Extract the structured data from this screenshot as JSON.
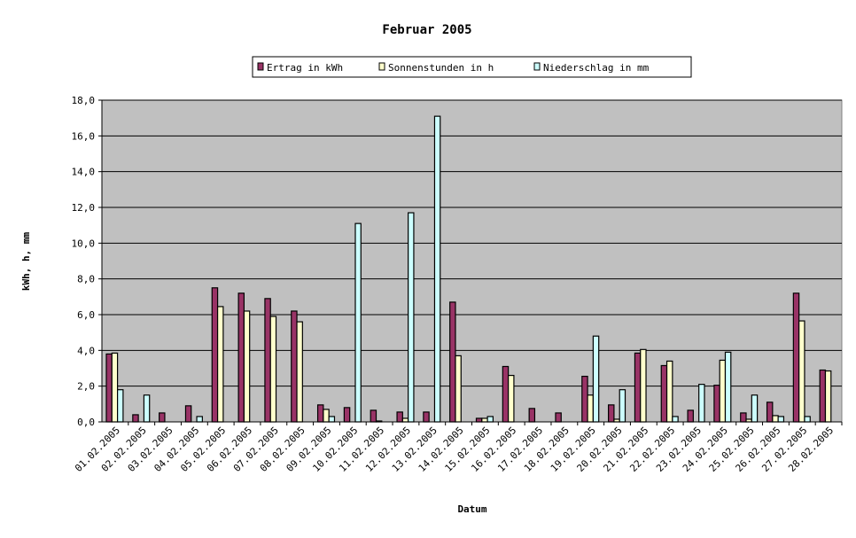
{
  "chart_data": {
    "type": "bar",
    "title": "Februar 2005",
    "xlabel": "Datum",
    "ylabel": "kWh, h, mm",
    "ylim": [
      0,
      18
    ],
    "ytick_step": 2,
    "ytick_labels": [
      "0,0",
      "2,0",
      "4,0",
      "6,0",
      "8,0",
      "10,0",
      "12,0",
      "14,0",
      "16,0",
      "18,0"
    ],
    "grid": true,
    "legend_position": "top",
    "plot_background": "#C0C0C0",
    "categories": [
      "01.02.2005",
      "02.02.2005",
      "03.02.2005",
      "04.02.2005",
      "05.02.2005",
      "06.02.2005",
      "07.02.2005",
      "08.02.2005",
      "09.02.2005",
      "10.02.2005",
      "11.02.2005",
      "12.02.2005",
      "13.02.2005",
      "14.02.2005",
      "15.02.2005",
      "16.02.2005",
      "17.02.2005",
      "18.02.2005",
      "19.02.2005",
      "20.02.2005",
      "21.02.2005",
      "22.02.2005",
      "23.02.2005",
      "24.02.2005",
      "25.02.2005",
      "26.02.2005",
      "27.02.2005",
      "28.02.2005"
    ],
    "series": [
      {
        "name": "Ertrag in kWh",
        "color": "#993366",
        "values": [
          3.8,
          0.4,
          0.5,
          0.9,
          7.5,
          7.2,
          6.9,
          6.2,
          0.95,
          0.8,
          0.65,
          0.55,
          0.55,
          6.7,
          0.2,
          3.1,
          0.75,
          0.5,
          2.55,
          0.95,
          3.85,
          3.15,
          0.65,
          2.05,
          0.5,
          1.1,
          7.2,
          2.9
        ]
      },
      {
        "name": "Sonnenstunden in h",
        "color": "#FFFFCC",
        "values": [
          3.85,
          0,
          0,
          0,
          6.45,
          6.2,
          5.9,
          5.6,
          0.7,
          0,
          0.05,
          0.2,
          0,
          3.7,
          0.2,
          2.6,
          0,
          0,
          1.5,
          0.15,
          4.05,
          3.4,
          0,
          3.45,
          0.15,
          0.35,
          5.65,
          2.85
        ]
      },
      {
        "name": "Niederschlag in mm",
        "color": "#CCFFFF",
        "values": [
          1.8,
          1.5,
          0,
          0.3,
          0,
          0,
          0,
          0,
          0.3,
          11.1,
          0,
          11.7,
          17.1,
          0,
          0.3,
          0,
          0,
          0,
          4.8,
          1.8,
          0,
          0.3,
          2.1,
          3.9,
          1.5,
          0.3,
          0.3,
          0
        ]
      }
    ]
  }
}
